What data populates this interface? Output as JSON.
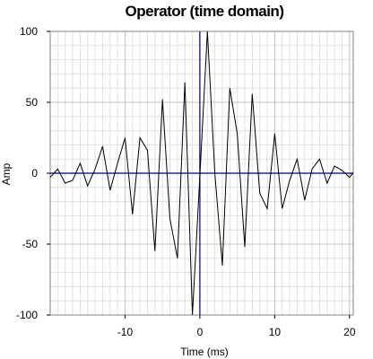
{
  "chart_data": {
    "type": "line",
    "title": "Operator (time domain)",
    "xlabel": "Time (ms)",
    "ylabel": "Amp",
    "xlim": [
      -20,
      20.5
    ],
    "ylim": [
      -100,
      100
    ],
    "xticks": [
      -10,
      0,
      10,
      20
    ],
    "yticks": [
      -100,
      -50,
      0,
      50,
      100
    ],
    "x_minor_step": 1,
    "y_minor_step": 10,
    "grid": true,
    "reference_lines": {
      "x": 0,
      "y": 0,
      "color": "#00007f"
    },
    "series_color": "#000000",
    "x": [
      -20,
      -19,
      -18,
      -17,
      -16,
      -15,
      -14,
      -13,
      -12,
      -11,
      -10,
      -9,
      -8,
      -7,
      -6,
      -5,
      -4,
      -3,
      -2,
      -1,
      0,
      1,
      2,
      3,
      4,
      5,
      6,
      7,
      8,
      9,
      10,
      11,
      12,
      13,
      14,
      15,
      16,
      17,
      18,
      19,
      20,
      21
    ],
    "values": [
      -3,
      3,
      -7,
      -5,
      7,
      -9,
      3,
      19,
      -12,
      7,
      25,
      -29,
      25,
      16,
      -55,
      52,
      -32,
      -60,
      64,
      -100,
      -2,
      100,
      0,
      -65,
      60,
      28,
      -52,
      56,
      -14,
      -25,
      28,
      -25,
      -5,
      10,
      -19,
      3,
      10,
      -7,
      5,
      2,
      -3,
      4
    ]
  }
}
